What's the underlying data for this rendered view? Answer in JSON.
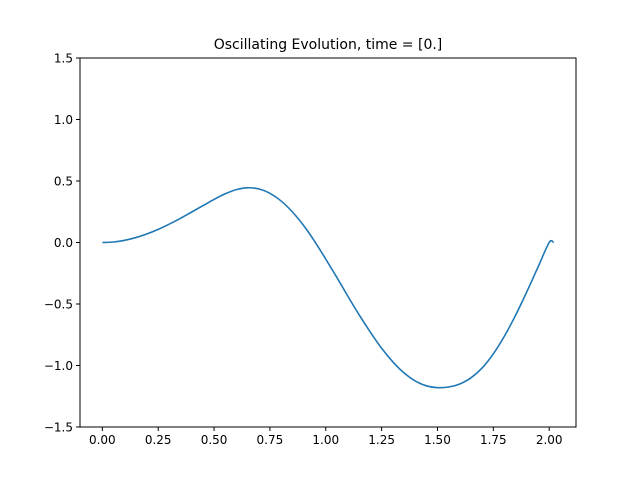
{
  "chart_data": {
    "type": "line",
    "title": "Oscillating Evolution, time = [0.]",
    "xlabel": "",
    "ylabel": "",
    "xlim": [
      -0.1,
      2.12
    ],
    "ylim": [
      -1.5,
      1.5
    ],
    "xticks": [
      0.0,
      0.25,
      0.5,
      0.75,
      1.0,
      1.25,
      1.5,
      1.75,
      2.0
    ],
    "xtick_labels": [
      "0.00",
      "0.25",
      "0.50",
      "0.75",
      "1.00",
      "1.25",
      "1.50",
      "1.75",
      "2.00"
    ],
    "yticks": [
      -1.5,
      -1.0,
      -0.5,
      0.0,
      0.5,
      1.0,
      1.5
    ],
    "ytick_labels": [
      "−1.5",
      "−1.0",
      "−0.5",
      "0.0",
      "0.5",
      "1.0",
      "1.5"
    ],
    "grid": false,
    "series_color": "#1f77b4",
    "series": [
      {
        "x": [
          0.0,
          0.05,
          0.1,
          0.15,
          0.2,
          0.25,
          0.3,
          0.35,
          0.4,
          0.45,
          0.5,
          0.55,
          0.6,
          0.65,
          0.7,
          0.75,
          0.8,
          0.85,
          0.9,
          0.95,
          1.0,
          1.05,
          1.1,
          1.15,
          1.2,
          1.25,
          1.3,
          1.35,
          1.4,
          1.45,
          1.5,
          1.55,
          1.6,
          1.65,
          1.7,
          1.75,
          1.8,
          1.85,
          1.9,
          1.95,
          2.0,
          2.02
        ],
        "y": [
          0.0,
          0.004,
          0.018,
          0.04,
          0.07,
          0.107,
          0.15,
          0.197,
          0.248,
          0.299,
          0.35,
          0.396,
          0.43,
          0.445,
          0.436,
          0.4,
          0.338,
          0.25,
          0.14,
          0.01,
          -0.135,
          -0.285,
          -0.44,
          -0.59,
          -0.73,
          -0.86,
          -0.97,
          -1.06,
          -1.125,
          -1.165,
          -1.18,
          -1.175,
          -1.15,
          -1.1,
          -1.02,
          -0.905,
          -0.76,
          -0.59,
          -0.4,
          -0.2,
          0.0,
          0.0
        ]
      }
    ]
  }
}
